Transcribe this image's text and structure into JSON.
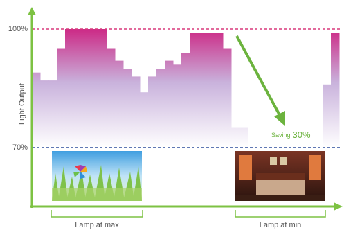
{
  "chart_data": {
    "type": "step-area",
    "y_label": "Light Output",
    "values": [
      89,
      87,
      87,
      95,
      100,
      100,
      100,
      100,
      100,
      95,
      92,
      90,
      88,
      84,
      88,
      90,
      92,
      91,
      94,
      99,
      99,
      99,
      99,
      95,
      75,
      75,
      70,
      70,
      70,
      70,
      70,
      70,
      70,
      70,
      70,
      86,
      99
    ],
    "ylim": [
      55,
      105
    ],
    "yticks": [
      {
        "value": 100,
        "label": "100%"
      },
      {
        "value": 70,
        "label": "70%"
      }
    ],
    "line_colors": [
      "#d8387c",
      "#2b4c9c"
    ],
    "fill_colors": [
      "#cc2a86",
      "#c9b2dc",
      "#ffffff"
    ],
    "axis_color": "#7dc243",
    "annotation": {
      "text": "Saving",
      "value": "30%"
    },
    "brackets": [
      "Lamp at max",
      "Lamp at min"
    ]
  }
}
